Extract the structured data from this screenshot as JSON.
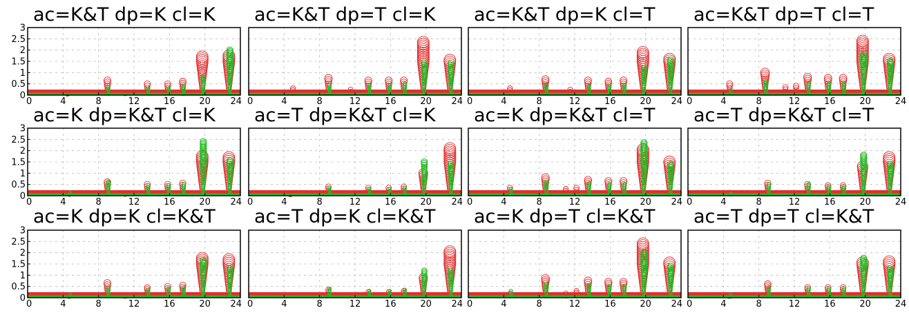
{
  "chart_data": {
    "type": "scatter",
    "colors": {
      "series_red": "#e03030",
      "series_green": "#22bb22",
      "grid": "#b8b8b8"
    },
    "grid": true,
    "xlim": [
      0,
      24
    ],
    "ylim": [
      0,
      3
    ],
    "xticks": [
      0,
      4,
      8,
      12,
      16,
      20,
      24
    ],
    "yticks": [
      0,
      0.5,
      1,
      1.5,
      2,
      2.5,
      3
    ],
    "xtick_labels": [
      "0",
      "4",
      "8",
      "12",
      "16",
      "20",
      "24"
    ],
    "ytick_labels": [
      "0",
      "0.5",
      "1",
      "1.5",
      "2",
      "2.5",
      "3"
    ],
    "panels": [
      {
        "title": "ac=K&T  dp=K  cl=K",
        "series": [
          {
            "color": "red",
            "baseline": 0.17,
            "points": [
              [
                4.5,
                0.05
              ],
              [
                9.0,
                0.65
              ],
              [
                11.0,
                0.1
              ],
              [
                13.5,
                0.5
              ],
              [
                15.8,
                0.5
              ],
              [
                17.5,
                0.6
              ],
              [
                19.7,
                1.7
              ],
              [
                22.7,
                1.75
              ]
            ]
          },
          {
            "color": "green",
            "baseline": 0.05,
            "points": [
              [
                9.0,
                0.35
              ],
              [
                13.5,
                0.3
              ],
              [
                15.8,
                0.3
              ],
              [
                17.5,
                0.4
              ],
              [
                19.7,
                0.8
              ],
              [
                22.7,
                2.0
              ]
            ]
          }
        ]
      },
      {
        "title": "ac=K&T  dp=T  cl=K",
        "series": [
          {
            "color": "red",
            "baseline": 0.17,
            "points": [
              [
                5.0,
                0.3
              ],
              [
                9.0,
                0.75
              ],
              [
                11.5,
                0.25
              ],
              [
                13.5,
                0.65
              ],
              [
                15.8,
                0.65
              ],
              [
                17.5,
                0.65
              ],
              [
                19.7,
                2.35
              ],
              [
                22.7,
                1.55
              ]
            ]
          },
          {
            "color": "green",
            "baseline": 0.05,
            "points": [
              [
                9.0,
                0.45
              ],
              [
                13.5,
                0.45
              ],
              [
                15.8,
                0.45
              ],
              [
                17.5,
                0.5
              ],
              [
                19.7,
                1.4
              ],
              [
                22.7,
                1.4
              ]
            ]
          }
        ]
      },
      {
        "title": "ac=K&T  dp=K  cl=T",
        "series": [
          {
            "color": "red",
            "baseline": 0.17,
            "points": [
              [
                4.7,
                0.3
              ],
              [
                8.7,
                0.7
              ],
              [
                11.5,
                0.25
              ],
              [
                13.5,
                0.65
              ],
              [
                15.8,
                0.6
              ],
              [
                17.5,
                0.65
              ],
              [
                19.7,
                1.9
              ],
              [
                22.7,
                1.6
              ]
            ]
          },
          {
            "color": "green",
            "baseline": 0.05,
            "points": [
              [
                8.7,
                0.45
              ],
              [
                13.5,
                0.4
              ],
              [
                15.8,
                0.4
              ],
              [
                17.5,
                0.45
              ],
              [
                19.7,
                1.2
              ],
              [
                22.7,
                1.55
              ]
            ]
          }
        ]
      },
      {
        "title": "ac=K&T  dp=T  cl=T",
        "series": [
          {
            "color": "red",
            "baseline": 0.17,
            "points": [
              [
                4.7,
                0.5
              ],
              [
                8.7,
                1.0
              ],
              [
                11.0,
                0.35
              ],
              [
                12.2,
                0.4
              ],
              [
                13.5,
                0.8
              ],
              [
                15.8,
                0.75
              ],
              [
                17.5,
                0.75
              ],
              [
                19.7,
                2.4
              ],
              [
                22.7,
                1.6
              ]
            ]
          },
          {
            "color": "green",
            "baseline": 0.05,
            "points": [
              [
                4.7,
                0.2
              ],
              [
                8.7,
                0.6
              ],
              [
                13.5,
                0.5
              ],
              [
                15.8,
                0.5
              ],
              [
                17.5,
                0.5
              ],
              [
                19.7,
                1.8
              ],
              [
                22.7,
                1.5
              ]
            ]
          }
        ]
      },
      {
        "title": "ac=K  dp=K&T  cl=K",
        "series": [
          {
            "color": "red",
            "baseline": 0.17,
            "points": [
              [
                4.7,
                0.1
              ],
              [
                9.0,
                0.6
              ],
              [
                11.0,
                0.1
              ],
              [
                13.5,
                0.5
              ],
              [
                15.8,
                0.5
              ],
              [
                17.5,
                0.55
              ],
              [
                19.7,
                1.75
              ],
              [
                22.7,
                1.7
              ]
            ]
          },
          {
            "color": "green",
            "baseline": 0.05,
            "points": [
              [
                4.7,
                0.15
              ],
              [
                9.0,
                0.6
              ],
              [
                13.5,
                0.45
              ],
              [
                15.8,
                0.45
              ],
              [
                17.5,
                0.5
              ],
              [
                19.7,
                2.4
              ],
              [
                22.7,
                1.55
              ]
            ]
          }
        ]
      },
      {
        "title": "ac=T  dp=K&T  cl=K",
        "series": [
          {
            "color": "red",
            "baseline": 0.17,
            "points": [
              [
                4.7,
                0.05
              ],
              [
                9.0,
                0.4
              ],
              [
                13.5,
                0.35
              ],
              [
                15.8,
                0.35
              ],
              [
                17.5,
                0.4
              ],
              [
                19.7,
                1.0
              ],
              [
                22.7,
                2.1
              ]
            ]
          },
          {
            "color": "green",
            "baseline": 0.05,
            "points": [
              [
                9.0,
                0.35
              ],
              [
                13.5,
                0.3
              ],
              [
                15.8,
                0.3
              ],
              [
                17.5,
                0.35
              ],
              [
                19.7,
                1.5
              ],
              [
                22.7,
                1.4
              ]
            ]
          }
        ]
      },
      {
        "title": "ac=K  dp=K&T  cl=T",
        "series": [
          {
            "color": "red",
            "baseline": 0.17,
            "points": [
              [
                4.7,
                0.35
              ],
              [
                8.7,
                0.8
              ],
              [
                11.0,
                0.3
              ],
              [
                12.2,
                0.35
              ],
              [
                13.5,
                0.7
              ],
              [
                15.8,
                0.65
              ],
              [
                17.5,
                0.65
              ],
              [
                19.7,
                2.05
              ],
              [
                22.7,
                1.5
              ]
            ]
          },
          {
            "color": "green",
            "baseline": 0.05,
            "points": [
              [
                4.7,
                0.3
              ],
              [
                8.7,
                0.6
              ],
              [
                13.5,
                0.55
              ],
              [
                15.8,
                0.5
              ],
              [
                17.5,
                0.5
              ],
              [
                19.7,
                2.35
              ],
              [
                22.7,
                1.4
              ]
            ]
          }
        ]
      },
      {
        "title": "ac=T  dp=K&T  cl=T",
        "series": [
          {
            "color": "red",
            "baseline": 0.17,
            "points": [
              [
                4.7,
                0.15
              ],
              [
                9.0,
                0.55
              ],
              [
                13.5,
                0.5
              ],
              [
                15.8,
                0.45
              ],
              [
                17.5,
                0.45
              ],
              [
                19.7,
                1.3
              ],
              [
                22.7,
                1.7
              ]
            ]
          },
          {
            "color": "green",
            "baseline": 0.05,
            "points": [
              [
                4.7,
                0.1
              ],
              [
                9.0,
                0.5
              ],
              [
                13.5,
                0.5
              ],
              [
                15.8,
                0.4
              ],
              [
                17.5,
                0.4
              ],
              [
                19.7,
                1.8
              ],
              [
                22.7,
                1.4
              ]
            ]
          }
        ]
      },
      {
        "title": "ac=K  dp=K  cl=K&T",
        "series": [
          {
            "color": "red",
            "baseline": 0.17,
            "points": [
              [
                4.7,
                0.1
              ],
              [
                9.0,
                0.65
              ],
              [
                11.0,
                0.1
              ],
              [
                13.5,
                0.45
              ],
              [
                15.8,
                0.5
              ],
              [
                17.5,
                0.55
              ],
              [
                19.7,
                1.75
              ],
              [
                22.7,
                1.7
              ]
            ]
          },
          {
            "color": "green",
            "baseline": 0.05,
            "points": [
              [
                4.7,
                0.15
              ],
              [
                9.0,
                0.45
              ],
              [
                13.5,
                0.35
              ],
              [
                15.8,
                0.4
              ],
              [
                17.5,
                0.45
              ],
              [
                19.7,
                1.65
              ],
              [
                22.7,
                1.3
              ]
            ]
          }
        ]
      },
      {
        "title": "ac=T  dp=K  cl=K&T",
        "series": [
          {
            "color": "red",
            "baseline": 0.17,
            "points": [
              [
                9.0,
                0.35
              ],
              [
                13.5,
                0.25
              ],
              [
                15.8,
                0.25
              ],
              [
                17.5,
                0.3
              ],
              [
                19.7,
                0.9
              ],
              [
                22.7,
                2.05
              ]
            ]
          },
          {
            "color": "green",
            "baseline": 0.05,
            "points": [
              [
                9.0,
                0.4
              ],
              [
                13.5,
                0.3
              ],
              [
                15.8,
                0.3
              ],
              [
                17.5,
                0.35
              ],
              [
                19.7,
                1.2
              ],
              [
                22.7,
                1.2
              ]
            ]
          }
        ]
      },
      {
        "title": "ac=K  dp=T  cl=K&T",
        "series": [
          {
            "color": "red",
            "baseline": 0.17,
            "points": [
              [
                4.7,
                0.2
              ],
              [
                8.7,
                0.85
              ],
              [
                11.0,
                0.2
              ],
              [
                12.2,
                0.3
              ],
              [
                13.5,
                0.75
              ],
              [
                15.8,
                0.7
              ],
              [
                17.5,
                0.7
              ],
              [
                19.7,
                2.4
              ],
              [
                22.7,
                1.55
              ]
            ]
          },
          {
            "color": "green",
            "baseline": 0.05,
            "points": [
              [
                4.7,
                0.3
              ],
              [
                8.7,
                0.6
              ],
              [
                13.5,
                0.55
              ],
              [
                15.8,
                0.5
              ],
              [
                17.5,
                0.5
              ],
              [
                19.7,
                2.0
              ],
              [
                22.7,
                1.4
              ]
            ]
          }
        ]
      },
      {
        "title": "ac=T  dp=T  cl=K&T",
        "series": [
          {
            "color": "red",
            "baseline": 0.17,
            "points": [
              [
                4.7,
                0.1
              ],
              [
                9.0,
                0.6
              ],
              [
                13.5,
                0.45
              ],
              [
                15.8,
                0.45
              ],
              [
                17.5,
                0.45
              ],
              [
                19.7,
                1.55
              ],
              [
                22.7,
                1.6
              ]
            ]
          },
          {
            "color": "green",
            "baseline": 0.05,
            "points": [
              [
                4.7,
                0.15
              ],
              [
                9.0,
                0.45
              ],
              [
                13.5,
                0.4
              ],
              [
                15.8,
                0.4
              ],
              [
                17.5,
                0.4
              ],
              [
                19.7,
                1.75
              ],
              [
                22.7,
                1.3
              ]
            ]
          }
        ]
      }
    ]
  }
}
